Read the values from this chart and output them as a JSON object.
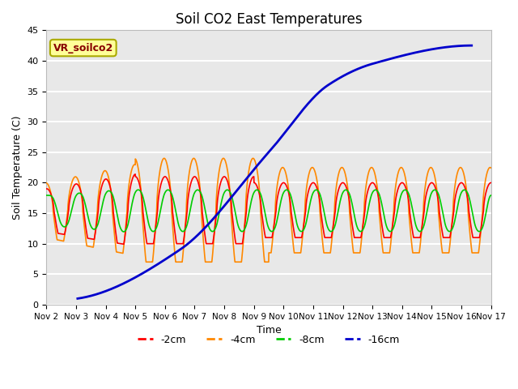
{
  "title": "Soil CO2 East Temperatures",
  "xlabel": "Time",
  "ylabel": "Soil Temperature (C)",
  "ylim": [
    0,
    45
  ],
  "x_tick_labels": [
    "Nov 2",
    "Nov 3",
    "Nov 4",
    "Nov 5",
    "Nov 6",
    "Nov 7",
    "Nov 8",
    "Nov 9",
    "Nov 10",
    "Nov 11",
    "Nov 12",
    "Nov 13",
    "Nov 14",
    "Nov 15",
    "Nov 16",
    "Nov 17"
  ],
  "legend_label": "VR_soilco2",
  "legend_box_facecolor": "#ffff99",
  "legend_box_edgecolor": "#aaaa00",
  "legend_text_color": "#880000",
  "color_red": "#ff0000",
  "color_orange": "#ff8800",
  "color_green": "#00cc00",
  "color_blue": "#0000cc",
  "line_labels": [
    "-2cm",
    "-4cm",
    "-8cm",
    "-16cm"
  ],
  "bg_color": "#e8e8e8",
  "grid_color": "#ffffff",
  "title_fontsize": 12,
  "blue_x_points": [
    1.05,
    4.5,
    7.5,
    9.5,
    11.0,
    14.35
  ],
  "blue_y_points": [
    1.0,
    9.0,
    25.0,
    36.0,
    39.5,
    42.5
  ]
}
